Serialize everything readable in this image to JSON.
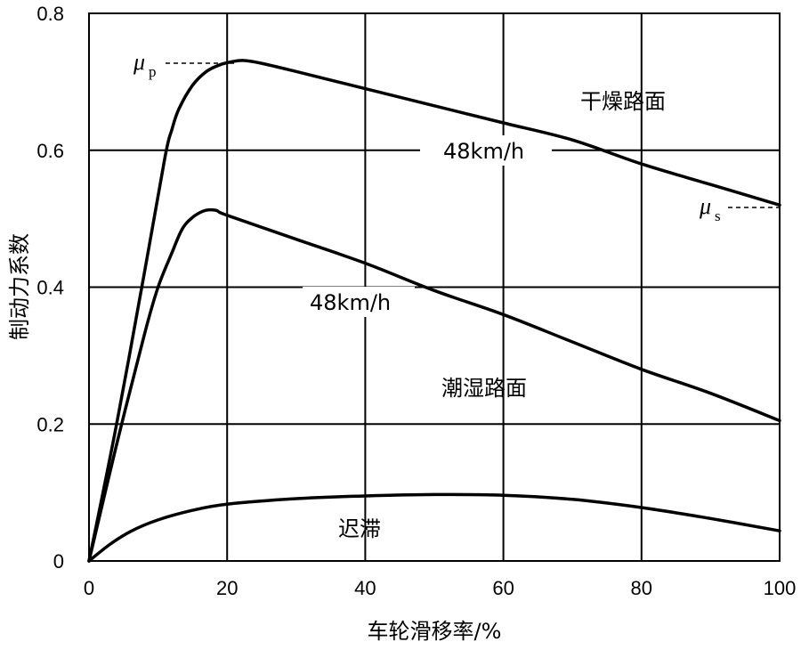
{
  "chart_data": {
    "type": "line",
    "title": "",
    "xlabel": "车轮滑移率/%",
    "ylabel": "制动力系数",
    "xlim": [
      0,
      100
    ],
    "ylim": [
      0,
      0.8
    ],
    "x_ticks": [
      "0",
      "20",
      "40",
      "60",
      "80",
      "100"
    ],
    "y_ticks": [
      "0",
      "0.2",
      "0.4",
      "0.6",
      "0.8"
    ],
    "grid": true,
    "series": [
      {
        "name": "干燥路面",
        "x": [
          0,
          4,
          8,
          11,
          12,
          13,
          15,
          17,
          19,
          21,
          22.5,
          25,
          30,
          40,
          50,
          60,
          70,
          80,
          90,
          100
        ],
        "y": [
          0,
          0.2,
          0.42,
          0.59,
          0.63,
          0.66,
          0.695,
          0.715,
          0.725,
          0.73,
          0.731,
          0.727,
          0.715,
          0.69,
          0.665,
          0.64,
          0.615,
          0.58,
          0.55,
          0.52
        ]
      },
      {
        "name": "潮湿路面",
        "x": [
          0,
          4,
          8,
          10,
          12,
          13.5,
          15,
          16.5,
          17.5,
          18.5,
          20,
          30,
          40,
          50,
          60,
          70,
          80,
          90,
          100
        ],
        "y": [
          0,
          0.17,
          0.33,
          0.4,
          0.45,
          0.485,
          0.502,
          0.511,
          0.513,
          0.512,
          0.505,
          0.47,
          0.435,
          0.395,
          0.36,
          0.32,
          0.28,
          0.245,
          0.205
        ]
      },
      {
        "name": "迟滞",
        "x": [
          0,
          3,
          6,
          10,
          15,
          20,
          30,
          40,
          50,
          60,
          70,
          80,
          90,
          100
        ],
        "y": [
          0,
          0.024,
          0.043,
          0.06,
          0.074,
          0.083,
          0.091,
          0.095,
          0.097,
          0.096,
          0.09,
          0.078,
          0.062,
          0.044
        ]
      }
    ],
    "annotations": {
      "dry_surface": "干燥路面",
      "wet_surface": "潮湿路面",
      "hysteresis": "迟滞",
      "dry_speed": "48km/h",
      "wet_speed": "48km/h",
      "mu_p_symbol": "μ",
      "mu_p_sub": "p",
      "mu_s_symbol": "μ",
      "mu_s_sub": "s"
    }
  }
}
